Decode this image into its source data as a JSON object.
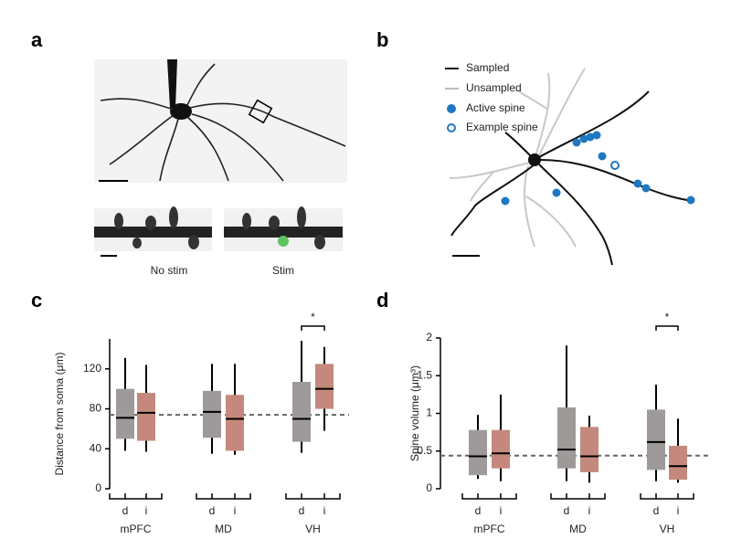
{
  "panels": {
    "a": {
      "label": "a",
      "captions": [
        "No stim",
        "Stim"
      ]
    },
    "b": {
      "label": "b",
      "legend": [
        "Sampled",
        "Unsampled",
        "Active spine",
        "Example spine"
      ]
    },
    "c": {
      "label": "c"
    },
    "d": {
      "label": "d"
    }
  },
  "chart_data": [
    {
      "type": "box",
      "y_label": "Distance from soma (μm)",
      "ylim": [
        0,
        150
      ],
      "yticks": [
        0,
        40,
        80,
        120
      ],
      "reference_line": 74,
      "groups": [
        {
          "label": "mPFC",
          "boxes": [
            {
              "category": "d",
              "color": "#9e9a99",
              "min": 38,
              "q1": 50,
              "median": 71,
              "q3": 100,
              "max": 131
            },
            {
              "category": "i",
              "color": "#c4897c",
              "min": 37,
              "q1": 48,
              "median": 76,
              "q3": 96,
              "max": 124
            }
          ]
        },
        {
          "label": "MD",
          "boxes": [
            {
              "category": "d",
              "color": "#9e9a99",
              "min": 35,
              "q1": 51,
              "median": 77,
              "q3": 98,
              "max": 125
            },
            {
              "category": "i",
              "color": "#c4897c",
              "min": 34,
              "q1": 38,
              "median": 70,
              "q3": 94,
              "max": 125
            }
          ]
        },
        {
          "label": "VH",
          "significance": "*",
          "boxes": [
            {
              "category": "d",
              "color": "#9e9a99",
              "min": 36,
              "q1": 47,
              "median": 70,
              "q3": 107,
              "max": 148
            },
            {
              "category": "i",
              "color": "#c4897c",
              "min": 58,
              "q1": 80,
              "median": 100,
              "q3": 125,
              "max": 142
            }
          ]
        }
      ]
    },
    {
      "type": "box",
      "y_label": "Spine volume (μm³)",
      "ylim": [
        0,
        2
      ],
      "yticks": [
        0,
        0.5,
        1,
        1.5,
        2
      ],
      "reference_line": 0.44,
      "groups": [
        {
          "label": "mPFC",
          "boxes": [
            {
              "category": "d",
              "color": "#9e9a99",
              "min": 0.13,
              "q1": 0.18,
              "median": 0.43,
              "q3": 0.78,
              "max": 0.98
            },
            {
              "category": "i",
              "color": "#c4897c",
              "min": 0.1,
              "q1": 0.27,
              "median": 0.47,
              "q3": 0.78,
              "max": 1.25
            }
          ]
        },
        {
          "label": "MD",
          "boxes": [
            {
              "category": "d",
              "color": "#9e9a99",
              "min": 0.1,
              "q1": 0.27,
              "median": 0.52,
              "q3": 1.08,
              "max": 1.9
            },
            {
              "category": "i",
              "color": "#c4897c",
              "min": 0.08,
              "q1": 0.22,
              "median": 0.43,
              "q3": 0.82,
              "max": 0.97
            }
          ]
        },
        {
          "label": "VH",
          "significance": "*",
          "boxes": [
            {
              "category": "d",
              "color": "#9e9a99",
              "min": 0.1,
              "q1": 0.25,
              "median": 0.62,
              "q3": 1.05,
              "max": 1.38
            },
            {
              "category": "i",
              "color": "#c4897c",
              "min": 0.08,
              "q1": 0.12,
              "median": 0.3,
              "q3": 0.57,
              "max": 0.93
            }
          ]
        }
      ]
    }
  ]
}
